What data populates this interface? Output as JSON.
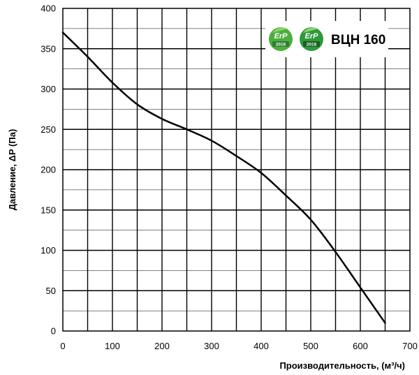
{
  "chart_data": {
    "type": "line",
    "title": "",
    "xlabel": "Производительность, (м³/ч)",
    "ylabel": "Давление, ΔP (Па)",
    "xlim": [
      0,
      700
    ],
    "ylim": [
      0,
      400
    ],
    "x_ticks": [
      "0",
      "100",
      "200",
      "300",
      "400",
      "500",
      "600",
      "700"
    ],
    "y_ticks": [
      "0",
      "50",
      "100",
      "150",
      "200",
      "250",
      "300",
      "350",
      "400"
    ],
    "grid": true,
    "series": [
      {
        "x": [
          0,
          50,
          100,
          150,
          200,
          250,
          300,
          350,
          400,
          450,
          500,
          550,
          600,
          650
        ],
        "y": [
          370,
          340,
          308,
          281,
          263,
          250,
          236,
          217,
          196,
          168,
          138,
          98,
          54,
          10
        ]
      }
    ],
    "annotations": {
      "badges": [
        {
          "label": "ErP",
          "year": "2016",
          "color": "#4caf3c"
        },
        {
          "label": "ErP",
          "year": "2018",
          "color": "#2e9a3a"
        }
      ],
      "model": "ВЦН 160"
    }
  }
}
